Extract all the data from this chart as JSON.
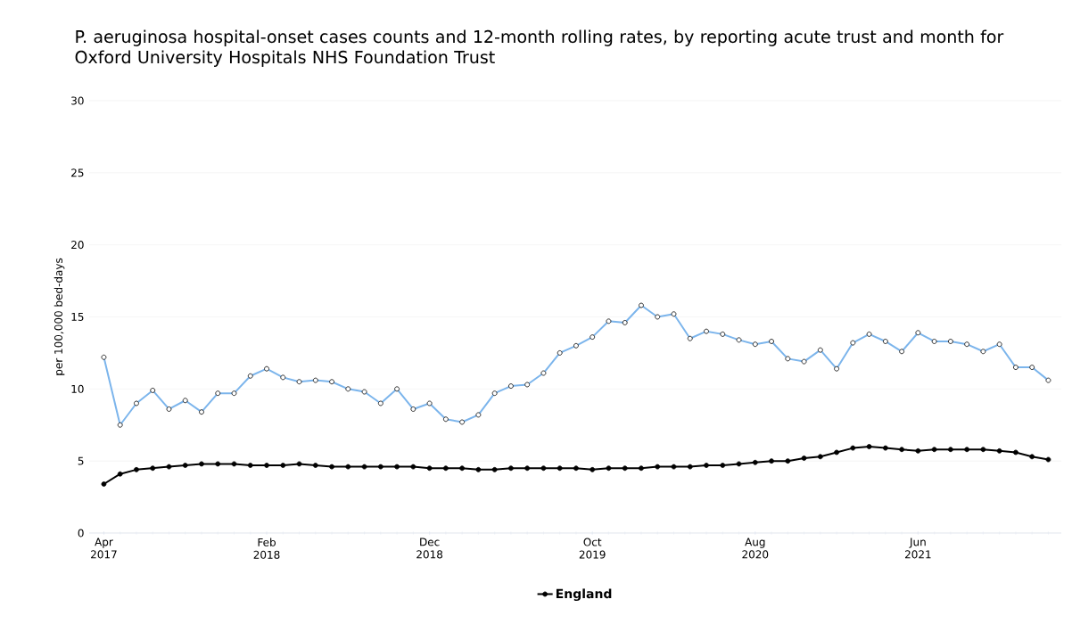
{
  "chart_data": {
    "type": "line",
    "title": "P. aeruginosa hospital-onset cases counts and 12-month rolling rates, by reporting acute trust and month for Oxford University Hospitals NHS Foundation Trust",
    "ylabel": "per 100,000 bed-days",
    "categories": [
      "Apr 2017",
      null,
      null,
      null,
      null,
      null,
      null,
      null,
      null,
      null,
      "Feb 2018",
      null,
      null,
      null,
      null,
      null,
      null,
      null,
      null,
      null,
      "Dec 2018",
      null,
      null,
      null,
      null,
      null,
      null,
      null,
      null,
      null,
      "Oct 2019",
      null,
      null,
      null,
      null,
      null,
      null,
      null,
      null,
      null,
      "Aug 2020",
      null,
      null,
      null,
      null,
      null,
      null,
      null,
      null,
      null,
      "Jun 2021",
      null,
      null,
      null,
      null,
      null,
      null,
      null,
      null
    ],
    "series": [
      {
        "color": "#7cb5ec",
        "values": [
          12.2,
          7.5,
          9.0,
          9.9,
          8.6,
          9.2,
          8.4,
          9.7,
          9.7,
          10.9,
          11.4,
          10.8,
          10.5,
          10.6,
          10.5,
          10.0,
          9.8,
          9.0,
          10.0,
          8.6,
          9.0,
          7.9,
          7.7,
          8.2,
          9.7,
          10.2,
          10.3,
          11.1,
          12.5,
          13.0,
          13.6,
          14.7,
          14.6,
          15.8,
          15.0,
          15.2,
          13.5,
          14.0,
          13.8,
          13.4,
          13.1,
          13.3,
          12.1,
          11.9,
          12.7,
          11.4,
          13.2,
          13.8,
          13.3,
          12.6,
          13.9,
          13.3,
          13.3,
          13.1,
          12.6,
          13.1,
          11.5,
          11.5,
          10.6
        ]
      },
      {
        "name": "England",
        "color": "#000000",
        "values": [
          3.4,
          4.1,
          4.4,
          4.5,
          4.6,
          4.7,
          4.8,
          4.8,
          4.8,
          4.7,
          4.7,
          4.7,
          4.8,
          4.7,
          4.6,
          4.6,
          4.6,
          4.6,
          4.6,
          4.6,
          4.5,
          4.5,
          4.5,
          4.4,
          4.4,
          4.5,
          4.5,
          4.5,
          4.5,
          4.5,
          4.4,
          4.5,
          4.5,
          4.5,
          4.6,
          4.6,
          4.6,
          4.7,
          4.7,
          4.8,
          4.9,
          5.0,
          5.0,
          5.2,
          5.3,
          5.6,
          5.9,
          6.0,
          5.9,
          5.8,
          5.7,
          5.8,
          5.8,
          5.8,
          5.8,
          5.7,
          5.6,
          5.3,
          5.1
        ]
      }
    ],
    "ylim": [
      0,
      30
    ],
    "yticks": [
      0,
      5,
      10,
      15,
      20,
      25,
      30
    ],
    "grid": "y",
    "legend": "bottom",
    "marker": "circle",
    "line_style": "solid"
  }
}
